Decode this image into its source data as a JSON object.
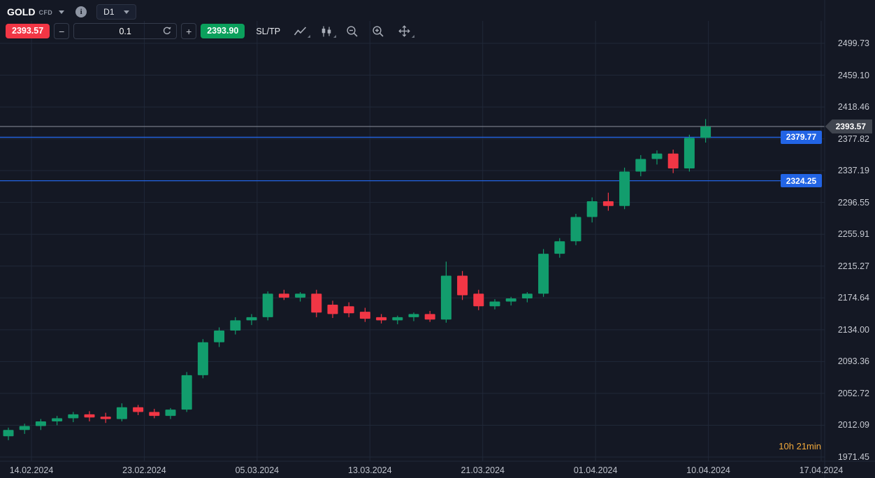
{
  "header": {
    "symbol": "GOLD",
    "instrument_type": "CFD",
    "timeframe": "D1"
  },
  "trade_bar": {
    "sell_price": "2393.57",
    "decrease_label": "−",
    "volume": "0.1",
    "increase_label": "+",
    "buy_price": "2393.90",
    "sltp_label": "SL/TP"
  },
  "colors": {
    "up": "#129d6d",
    "down": "#f23645",
    "sell_red": "#f23645",
    "buy_green": "#0ba05c",
    "level_blue": "#2264e5",
    "current_line": "#8b909b",
    "current_tag_bg": "#40454f",
    "grid": "#202838",
    "countdown_orange": "#f2a93b"
  },
  "chart_data": {
    "type": "candlestick",
    "instrument": "GOLD CFD",
    "timeframe": "D1",
    "y_range": [
      1971.45,
      2499.73
    ],
    "y_ticks": [
      "2499.73",
      "2459.10",
      "2418.46",
      "2377.82",
      "2337.19",
      "2296.55",
      "2255.91",
      "2215.27",
      "2174.64",
      "2134.00",
      "2093.36",
      "2052.72",
      "2012.09",
      "1971.45"
    ],
    "x_ticks": [
      "14.02.2024",
      "23.02.2024",
      "05.03.2024",
      "13.03.2024",
      "21.03.2024",
      "01.04.2024",
      "10.04.2024",
      "17.04.2024"
    ],
    "current_price": {
      "label": "2393.57",
      "value": 2393.57
    },
    "levels": [
      {
        "label": "2379.77",
        "value": 2379.77
      },
      {
        "label": "2324.25",
        "value": 2324.25
      }
    ],
    "countdown": "10h 21min",
    "candles": [
      [
        1998,
        2009,
        1993,
        2006
      ],
      [
        2006,
        2014,
        2001,
        2011
      ],
      [
        2011,
        2020,
        2006,
        2017
      ],
      [
        2017,
        2024,
        2012,
        2021
      ],
      [
        2021,
        2029,
        2016,
        2026
      ],
      [
        2026,
        2030,
        2017,
        2022
      ],
      [
        2023,
        2028,
        2015,
        2020
      ],
      [
        2020,
        2040,
        2017,
        2035
      ],
      [
        2035,
        2038,
        2025,
        2029
      ],
      [
        2029,
        2033,
        2021,
        2024
      ],
      [
        2024,
        2034,
        2020,
        2032
      ],
      [
        2032,
        2080,
        2029,
        2076
      ],
      [
        2076,
        2122,
        2072,
        2118
      ],
      [
        2118,
        2137,
        2112,
        2133
      ],
      [
        2133,
        2150,
        2128,
        2146
      ],
      [
        2146,
        2154,
        2140,
        2150
      ],
      [
        2150,
        2183,
        2146,
        2180
      ],
      [
        2180,
        2185,
        2172,
        2175
      ],
      [
        2175,
        2182,
        2170,
        2180
      ],
      [
        2180,
        2185,
        2150,
        2156
      ],
      [
        2166,
        2171,
        2149,
        2154
      ],
      [
        2164,
        2169,
        2150,
        2155
      ],
      [
        2157,
        2162,
        2144,
        2148
      ],
      [
        2150,
        2154,
        2142,
        2146
      ],
      [
        2146,
        2152,
        2141,
        2150
      ],
      [
        2150,
        2156,
        2145,
        2154
      ],
      [
        2154,
        2158,
        2144,
        2147
      ],
      [
        2147,
        2221,
        2143,
        2203
      ],
      [
        2203,
        2209,
        2172,
        2178
      ],
      [
        2180,
        2185,
        2159,
        2164
      ],
      [
        2164,
        2173,
        2160,
        2170
      ],
      [
        2170,
        2176,
        2165,
        2174
      ],
      [
        2174,
        2182,
        2169,
        2180
      ],
      [
        2180,
        2237,
        2176,
        2231
      ],
      [
        2231,
        2251,
        2226,
        2247
      ],
      [
        2247,
        2282,
        2242,
        2278
      ],
      [
        2278,
        2303,
        2271,
        2298
      ],
      [
        2298,
        2309,
        2286,
        2292
      ],
      [
        2292,
        2341,
        2288,
        2336
      ],
      [
        2336,
        2357,
        2330,
        2352
      ],
      [
        2352,
        2363,
        2345,
        2359
      ],
      [
        2359,
        2364,
        2334,
        2340
      ],
      [
        2340,
        2383,
        2336,
        2379
      ],
      [
        2379,
        2403,
        2373,
        2393.57
      ]
    ]
  }
}
